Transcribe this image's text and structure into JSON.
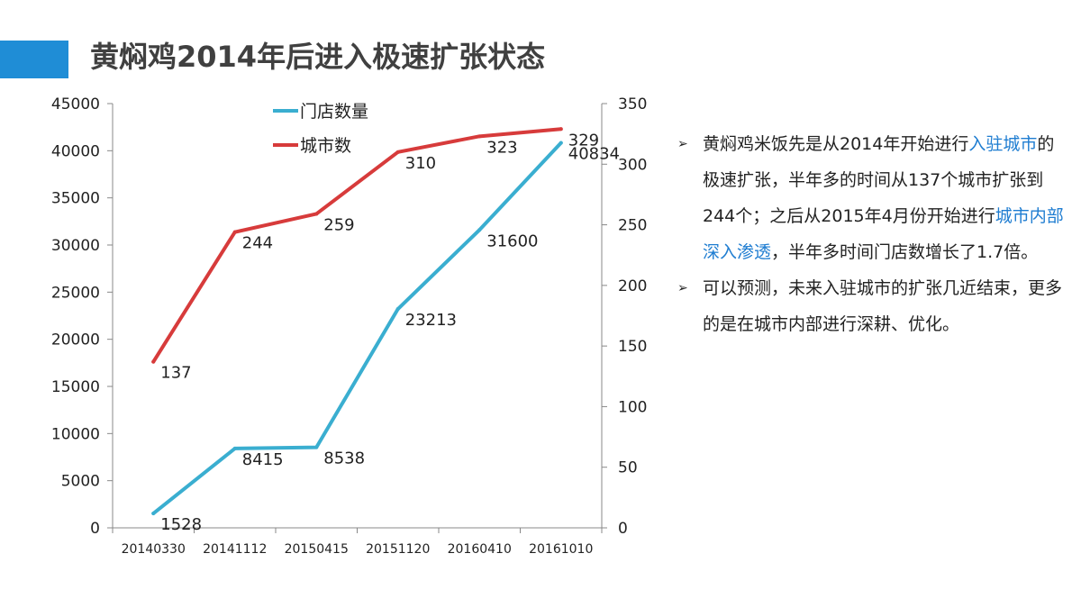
{
  "slide": {
    "title": "黄焖鸡2014年后进入极速扩张状态",
    "accent_color": "#1f8dd6"
  },
  "notes": {
    "bullet_icon": "arrow-bullet-icon",
    "bullet_glyph": "➢",
    "items": [
      {
        "parts": [
          {
            "text": "黄焖鸡米饭先是从2014年开始进行",
            "highlight": false
          },
          {
            "text": "入驻城市",
            "highlight": true
          },
          {
            "text": "的极速扩张，半年多的时间从137个城市扩张到244个；之后从2015年4月份开始进行",
            "highlight": false
          },
          {
            "text": "城市内部深入渗透",
            "highlight": true
          },
          {
            "text": "，半年多时间门店数增长了1.7倍。",
            "highlight": false
          }
        ]
      },
      {
        "parts": [
          {
            "text": "可以预测，未来入驻城市的扩张几近结束，更多的是在城市内部进行深耕、优化。",
            "highlight": false
          }
        ]
      }
    ]
  },
  "chart_data": {
    "type": "line",
    "categories": [
      "20140330",
      "20141112",
      "20150415",
      "20151120",
      "20160410",
      "20161010"
    ],
    "series": [
      {
        "name": "门店数量",
        "axis": "left",
        "color": "#3aaed0",
        "values": [
          1528,
          8415,
          8538,
          23213,
          31600,
          40834
        ]
      },
      {
        "name": "城市数",
        "axis": "right",
        "color": "#d73b3b",
        "values": [
          137,
          244,
          259,
          310,
          323,
          329
        ]
      }
    ],
    "y_left": {
      "min": 0,
      "max": 45000,
      "step": 5000
    },
    "y_right": {
      "min": 0,
      "max": 350,
      "step": 50
    },
    "data_labels": true,
    "grid": false,
    "legend": "top-center"
  }
}
